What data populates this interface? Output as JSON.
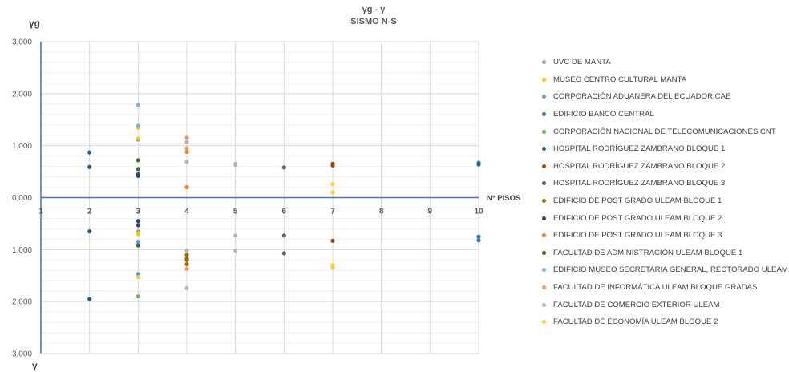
{
  "chart_data": {
    "type": "scatter",
    "title_line1": "γg -  γ",
    "title_line2": "SISMO N-S",
    "y_top_label": "γg",
    "y_bottom_label": "γ",
    "x_axis_label": "N° PISOS",
    "x_ticks": [
      "1",
      "2",
      "3",
      "4",
      "5",
      "6",
      "7",
      "8",
      "9",
      "10"
    ],
    "xlim": [
      1,
      10
    ],
    "ylim": [
      -3,
      3
    ],
    "y_tick_labels": [
      "3,000",
      "2,000",
      "1,000",
      "0,000",
      "1,000",
      "2,000",
      "3,000"
    ],
    "grid": true,
    "legend_position": "right",
    "series": [
      {
        "name": "UVC DE MANTA",
        "color": "#a5a5a5",
        "points": [
          [
            3,
            1.12
          ],
          [
            3,
            -0.65
          ]
        ]
      },
      {
        "name": "MUSEO CENTRO CULTURAL MANTA",
        "color": "#ffc000",
        "points": [
          [
            3,
            1.35
          ],
          [
            3,
            -0.7
          ]
        ]
      },
      {
        "name": "CORPORACIÓN ADUANERA DEL ECUADOR CAE",
        "color": "#5b9bd5",
        "points": [
          [
            3,
            -0.85
          ],
          [
            3,
            -1.47
          ]
        ]
      },
      {
        "name": "EDIFICIO BANCO CENTRAL",
        "color": "#4472c4",
        "points": [
          [
            10,
            0.67
          ],
          [
            10,
            -0.75
          ],
          [
            10,
            -0.82
          ]
        ]
      },
      {
        "name": "CORPORACIÓN NACIONAL DE TELECOMUNICACIONES CNT",
        "color": "#70ad47",
        "points": [
          [
            3,
            1.12
          ],
          [
            3,
            -1.9
          ]
        ]
      },
      {
        "name": "HOSPITAL RODRÍGUEZ ZAMBRANO BLOQUE 1",
        "color": "#255e91",
        "points": [
          [
            2,
            0.87
          ],
          [
            2,
            0.59
          ],
          [
            2,
            -0.65
          ],
          [
            2,
            -1.95
          ],
          [
            3,
            0.45
          ],
          [
            10,
            0.64
          ]
        ]
      },
      {
        "name": "HOSPITAL RODRÍGUEZ ZAMBRANO BLOQUE 2",
        "color": "#9e480e",
        "points": [
          [
            7,
            0.65
          ],
          [
            7,
            0.62
          ],
          [
            7,
            -0.83
          ],
          [
            4,
            -1.18
          ]
        ]
      },
      {
        "name": "HOSPITAL RODRÍGUEZ ZAMBRANO BLOQUE 3",
        "color": "#636363",
        "points": [
          [
            6,
            0.58
          ],
          [
            6,
            -0.73
          ],
          [
            6,
            -1.07
          ]
        ]
      },
      {
        "name": "EDIFICIO DE POST GRADO ULEAM BLOQUE 1",
        "color": "#997300",
        "points": [
          [
            4,
            -1.1
          ],
          [
            4,
            -1.2
          ],
          [
            4,
            -1.28
          ]
        ]
      },
      {
        "name": "EDIFICIO DE POST GRADO ULEAM BLOQUE 2",
        "color": "#264478",
        "points": [
          [
            3,
            0.42
          ],
          [
            3,
            -0.45
          ],
          [
            3,
            -0.53
          ]
        ]
      },
      {
        "name": "EDIFICIO DE POST GRADO ULEAM BLOQUE 3",
        "color": "#ed7d31",
        "points": [
          [
            4,
            0.2
          ],
          [
            4,
            0.88
          ]
        ]
      },
      {
        "name": "FACULTAD DE ADMINISTRACIÓN ULEAM BLOQUE 1",
        "color": "#43682b",
        "points": [
          [
            3,
            0.72
          ],
          [
            3,
            0.55
          ],
          [
            3,
            -0.92
          ]
        ]
      },
      {
        "name": "EDIFICIO MUSEO SECRETARIA GENERAL, RECTORADO ULEAM",
        "color": "#7cafdd",
        "points": [
          [
            3,
            1.78
          ],
          [
            3,
            1.38
          ]
        ]
      },
      {
        "name": "FACULTAD DE INFORMÁTICA ULEAM BLOQUE GRADAS",
        "color": "#f1975a",
        "points": [
          [
            4,
            1.15
          ],
          [
            4,
            0.95
          ],
          [
            4,
            -1.37
          ]
        ]
      },
      {
        "name": "FACULTAD DE COMERCIO EXTERIOR ULEAM",
        "color": "#b7b7b7",
        "points": [
          [
            4,
            1.07
          ],
          [
            4,
            0.69
          ],
          [
            4,
            -1.02
          ],
          [
            4,
            -1.74
          ],
          [
            5,
            0.65
          ],
          [
            5,
            0.63
          ],
          [
            5,
            -0.73
          ],
          [
            5,
            -1.02
          ]
        ]
      },
      {
        "name": "FACULTAD DE ECONOMÍA ULEAM BLOQUE 2",
        "color": "#ffcd33",
        "points": [
          [
            3,
            1.14
          ],
          [
            3,
            -1.53
          ],
          [
            7,
            0.26
          ],
          [
            7,
            0.1
          ],
          [
            7,
            -1.3
          ],
          [
            7,
            -1.35
          ]
        ]
      }
    ]
  }
}
